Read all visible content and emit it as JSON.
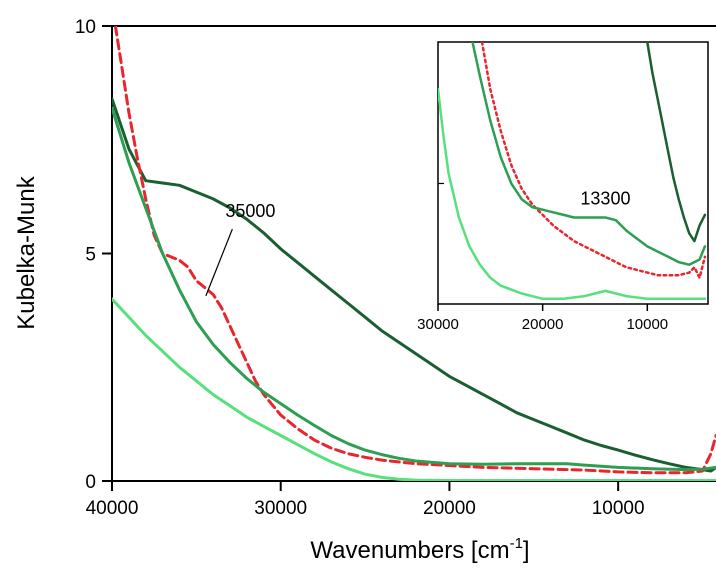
{
  "chart_data": [
    {
      "type": "line",
      "xlabel": "Wavenumbers [cm",
      "xlabel_sup": "-1",
      "xlabel_end": "]",
      "ylabel": "Kubelka-Munk",
      "xlim": [
        40000,
        4200
      ],
      "ylim": [
        0,
        10
      ],
      "x_reversed": true,
      "x_ticks": [
        40000,
        30000,
        20000,
        10000
      ],
      "x_tick_labels": [
        "40000",
        "30000",
        "20000",
        "10000"
      ],
      "y_ticks": [
        0,
        5,
        10
      ],
      "y_tick_labels": [
        "0",
        "5",
        "10"
      ],
      "grid": false,
      "series": [
        {
          "color": "#1b5e32",
          "style": "solid",
          "points": [
            [
              40000,
              8.4
            ],
            [
              39000,
              7.3
            ],
            [
              38000,
              6.6
            ],
            [
              37000,
              6.55
            ],
            [
              36000,
              6.5
            ],
            [
              35000,
              6.35
            ],
            [
              34000,
              6.2
            ],
            [
              33000,
              6.0
            ],
            [
              32000,
              5.75
            ],
            [
              31000,
              5.45
            ],
            [
              30000,
              5.1
            ],
            [
              29000,
              4.8
            ],
            [
              28000,
              4.5
            ],
            [
              27000,
              4.2
            ],
            [
              26000,
              3.9
            ],
            [
              25000,
              3.6
            ],
            [
              24000,
              3.3
            ],
            [
              23000,
              3.05
            ],
            [
              22000,
              2.8
            ],
            [
              21000,
              2.55
            ],
            [
              20000,
              2.3
            ],
            [
              19000,
              2.1
            ],
            [
              18000,
              1.9
            ],
            [
              17000,
              1.7
            ],
            [
              16000,
              1.5
            ],
            [
              15000,
              1.35
            ],
            [
              14000,
              1.2
            ],
            [
              13000,
              1.05
            ],
            [
              12000,
              0.9
            ],
            [
              11000,
              0.78
            ],
            [
              10000,
              0.68
            ],
            [
              9000,
              0.57
            ],
            [
              8000,
              0.47
            ],
            [
              7000,
              0.38
            ],
            [
              6000,
              0.3
            ],
            [
              5000,
              0.25
            ],
            [
              4500,
              0.22
            ],
            [
              4200,
              0.3
            ]
          ]
        },
        {
          "color": "#e8262e",
          "style": "dashed",
          "points": [
            [
              39800,
              10.0
            ],
            [
              39500,
              9.3
            ],
            [
              39000,
              8.1
            ],
            [
              38500,
              7.1
            ],
            [
              38000,
              6.2
            ],
            [
              37500,
              5.4
            ],
            [
              37000,
              5.0
            ],
            [
              36000,
              4.85
            ],
            [
              35500,
              4.7
            ],
            [
              35000,
              4.4
            ],
            [
              34500,
              4.25
            ],
            [
              34000,
              4.1
            ],
            [
              33500,
              3.8
            ],
            [
              33000,
              3.4
            ],
            [
              32500,
              3.0
            ],
            [
              32000,
              2.6
            ],
            [
              31500,
              2.2
            ],
            [
              31000,
              1.9
            ],
            [
              30000,
              1.45
            ],
            [
              29000,
              1.15
            ],
            [
              28000,
              0.9
            ],
            [
              27000,
              0.72
            ],
            [
              26000,
              0.6
            ],
            [
              25000,
              0.52
            ],
            [
              24000,
              0.46
            ],
            [
              22000,
              0.38
            ],
            [
              20000,
              0.34
            ],
            [
              18000,
              0.3
            ],
            [
              15000,
              0.27
            ],
            [
              12000,
              0.24
            ],
            [
              10000,
              0.2
            ],
            [
              8000,
              0.18
            ],
            [
              6000,
              0.18
            ],
            [
              5000,
              0.22
            ],
            [
              4500,
              0.6
            ],
            [
              4200,
              1.0
            ]
          ]
        },
        {
          "color": "#2d9e52",
          "style": "solid",
          "points": [
            [
              40000,
              8.2
            ],
            [
              39000,
              7.0
            ],
            [
              38000,
              6.0
            ],
            [
              37000,
              5.0
            ],
            [
              36000,
              4.2
            ],
            [
              35000,
              3.5
            ],
            [
              34000,
              3.0
            ],
            [
              33000,
              2.6
            ],
            [
              32000,
              2.25
            ],
            [
              31000,
              1.95
            ],
            [
              30000,
              1.7
            ],
            [
              29000,
              1.45
            ],
            [
              28000,
              1.22
            ],
            [
              27000,
              1.0
            ],
            [
              26000,
              0.82
            ],
            [
              25000,
              0.68
            ],
            [
              24000,
              0.58
            ],
            [
              23000,
              0.5
            ],
            [
              22000,
              0.44
            ],
            [
              20000,
              0.38
            ],
            [
              18000,
              0.37
            ],
            [
              16000,
              0.38
            ],
            [
              14000,
              0.38
            ],
            [
              13000,
              0.38
            ],
            [
              12000,
              0.35
            ],
            [
              10000,
              0.3
            ],
            [
              8000,
              0.27
            ],
            [
              6000,
              0.25
            ],
            [
              5000,
              0.26
            ],
            [
              4200,
              0.3
            ]
          ]
        },
        {
          "color": "#57e07c",
          "style": "solid",
          "points": [
            [
              40000,
              4.0
            ],
            [
              39000,
              3.6
            ],
            [
              38000,
              3.2
            ],
            [
              37000,
              2.85
            ],
            [
              36000,
              2.5
            ],
            [
              35000,
              2.2
            ],
            [
              34000,
              1.9
            ],
            [
              33000,
              1.65
            ],
            [
              32000,
              1.4
            ],
            [
              31000,
              1.2
            ],
            [
              30000,
              1.0
            ],
            [
              29000,
              0.8
            ],
            [
              28000,
              0.6
            ],
            [
              27000,
              0.42
            ],
            [
              26000,
              0.27
            ],
            [
              25000,
              0.15
            ],
            [
              24000,
              0.08
            ],
            [
              23000,
              0.04
            ],
            [
              22000,
              0.02
            ],
            [
              20000,
              0.01
            ],
            [
              15000,
              0.01
            ],
            [
              10000,
              0.01
            ],
            [
              5000,
              0.01
            ],
            [
              4200,
              0.01
            ]
          ]
        }
      ],
      "annotations": [
        {
          "text": "35000",
          "at": [
            34200,
            4.2
          ],
          "label_at": [
            31800,
            5.8
          ]
        }
      ]
    },
    {
      "type": "line",
      "inset": true,
      "xlim": [
        30000,
        4200
      ],
      "ylim": [
        0,
        1
      ],
      "x_reversed": true,
      "x_ticks": [
        30000,
        20000,
        10000
      ],
      "x_tick_labels": [
        "30000",
        "20000",
        "10000"
      ],
      "series": [
        {
          "color": "#1b5e32",
          "style": "solid",
          "points": [
            [
              10000,
              1.0
            ],
            [
              9500,
              0.88
            ],
            [
              9000,
              0.78
            ],
            [
              8500,
              0.68
            ],
            [
              8000,
              0.58
            ],
            [
              7500,
              0.48
            ],
            [
              7000,
              0.4
            ],
            [
              6500,
              0.33
            ],
            [
              6000,
              0.27
            ],
            [
              5500,
              0.24
            ],
            [
              5000,
              0.3
            ],
            [
              4500,
              0.34
            ]
          ]
        },
        {
          "color": "#e8262e",
          "style": "dotted",
          "points": [
            [
              25800,
              1.0
            ],
            [
              25000,
              0.82
            ],
            [
              24000,
              0.66
            ],
            [
              23000,
              0.53
            ],
            [
              22000,
              0.44
            ],
            [
              21000,
              0.38
            ],
            [
              20000,
              0.34
            ],
            [
              19000,
              0.3
            ],
            [
              18000,
              0.27
            ],
            [
              17000,
              0.24
            ],
            [
              16000,
              0.22
            ],
            [
              15000,
              0.2
            ],
            [
              14000,
              0.18
            ],
            [
              13000,
              0.16
            ],
            [
              12000,
              0.14
            ],
            [
              11000,
              0.13
            ],
            [
              10000,
              0.12
            ],
            [
              9000,
              0.11
            ],
            [
              8000,
              0.11
            ],
            [
              7000,
              0.11
            ],
            [
              6000,
              0.12
            ],
            [
              5500,
              0.14
            ],
            [
              5000,
              0.1
            ],
            [
              4500,
              0.18
            ]
          ]
        },
        {
          "color": "#2d9e52",
          "style": "solid",
          "points": [
            [
              26700,
              1.0
            ],
            [
              26000,
              0.87
            ],
            [
              25000,
              0.7
            ],
            [
              24000,
              0.56
            ],
            [
              23000,
              0.46
            ],
            [
              22000,
              0.4
            ],
            [
              21000,
              0.37
            ],
            [
              20000,
              0.36
            ],
            [
              19000,
              0.35
            ],
            [
              18000,
              0.34
            ],
            [
              17000,
              0.33
            ],
            [
              16000,
              0.33
            ],
            [
              15000,
              0.33
            ],
            [
              14000,
              0.33
            ],
            [
              13000,
              0.32
            ],
            [
              12000,
              0.28
            ],
            [
              11000,
              0.25
            ],
            [
              10000,
              0.22
            ],
            [
              9000,
              0.2
            ],
            [
              8000,
              0.18
            ],
            [
              7000,
              0.16
            ],
            [
              6000,
              0.15
            ],
            [
              5000,
              0.17
            ],
            [
              4500,
              0.22
            ]
          ]
        },
        {
          "color": "#57e07c",
          "style": "solid",
          "points": [
            [
              30000,
              0.82
            ],
            [
              29500,
              0.65
            ],
            [
              29000,
              0.5
            ],
            [
              28000,
              0.33
            ],
            [
              27000,
              0.22
            ],
            [
              26000,
              0.15
            ],
            [
              25000,
              0.1
            ],
            [
              24000,
              0.07
            ],
            [
              22000,
              0.04
            ],
            [
              20000,
              0.02
            ],
            [
              18000,
              0.02
            ],
            [
              16000,
              0.03
            ],
            [
              14000,
              0.05
            ],
            [
              13000,
              0.04
            ],
            [
              12000,
              0.03
            ],
            [
              10000,
              0.02
            ],
            [
              8000,
              0.02
            ],
            [
              6000,
              0.02
            ],
            [
              4500,
              0.02
            ]
          ]
        }
      ],
      "annotations": [
        {
          "text": "13300",
          "label_at": [
            14000,
            0.38
          ]
        }
      ]
    }
  ]
}
